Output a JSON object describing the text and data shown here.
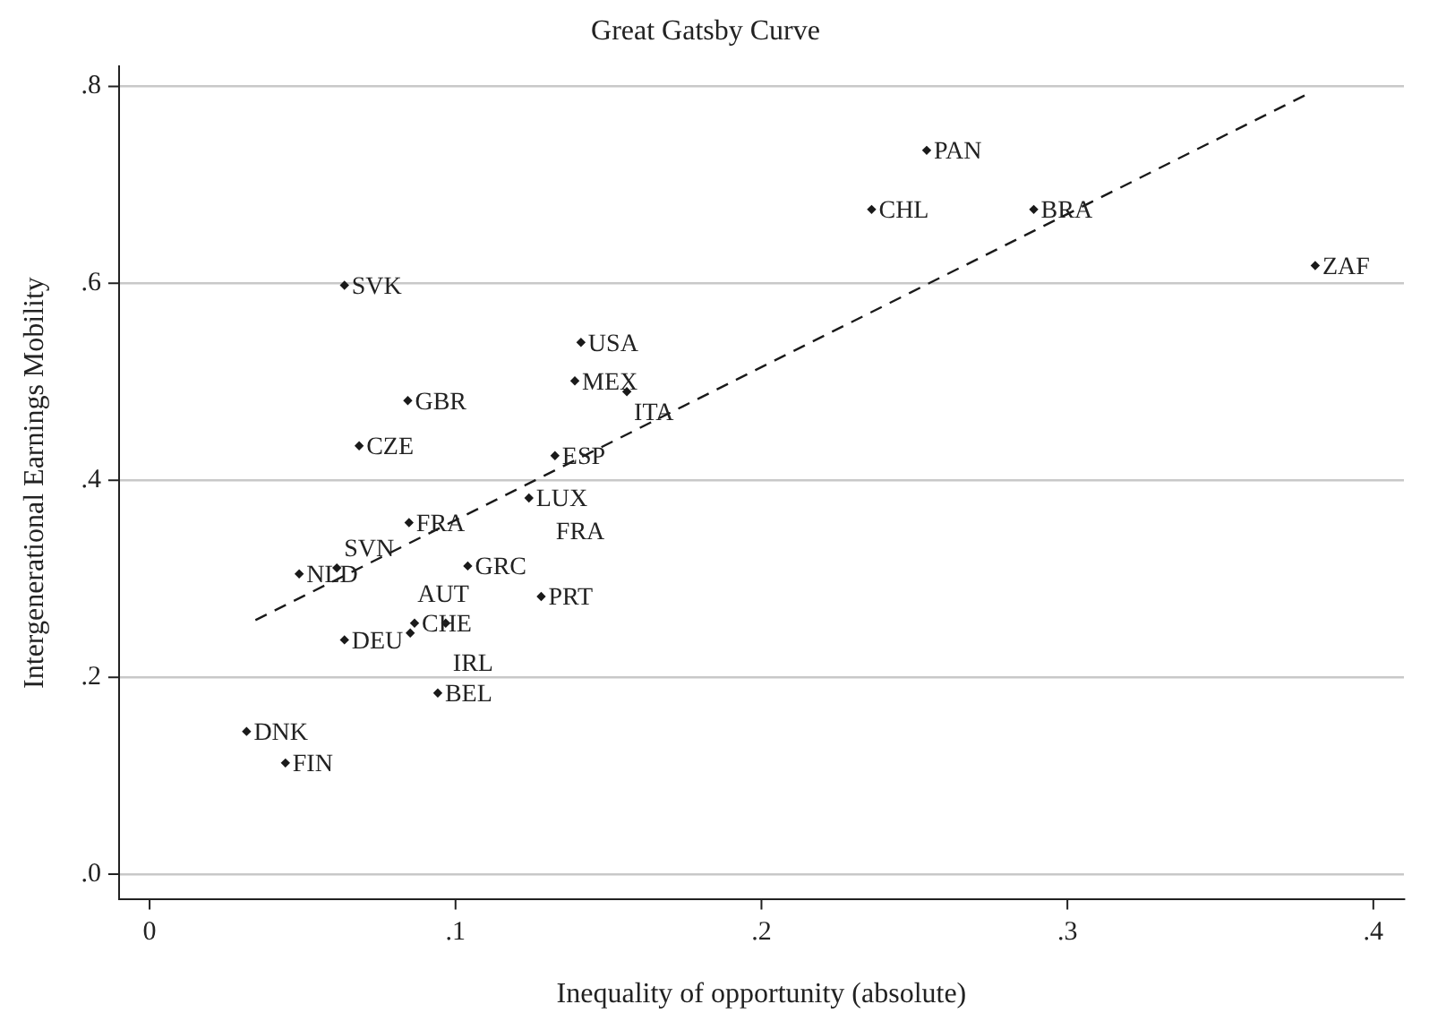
{
  "chart_data": {
    "type": "scatter",
    "title": "Great Gatsby Curve",
    "xlabel": "Inequality of opportunity (absolute)",
    "ylabel": "Intergenerational Earnings Mobility",
    "xlim": [
      -0.01,
      0.41
    ],
    "ylim": [
      -0.025,
      0.82
    ],
    "xticks": [
      {
        "value": 0,
        "label": "0"
      },
      {
        "value": 0.1,
        "label": ".1"
      },
      {
        "value": 0.2,
        "label": ".2"
      },
      {
        "value": 0.3,
        "label": ".3"
      },
      {
        "value": 0.4,
        "label": ".4"
      }
    ],
    "yticks": [
      {
        "value": 0,
        "label": ".0"
      },
      {
        "value": 0.2,
        "label": ".2"
      },
      {
        "value": 0.4,
        "label": ".4"
      },
      {
        "value": 0.6,
        "label": ".6"
      },
      {
        "value": 0.8,
        "label": ".8"
      }
    ],
    "grid": "y",
    "legend": false,
    "marker": "diamond",
    "series": [
      {
        "type": "scatter",
        "color": "#1a1a1a",
        "x": [
          0.254,
          0.236,
          0.289,
          0.381,
          0.0637,
          0.141,
          0.139,
          0.156,
          0.0844,
          0.0685,
          0.1325,
          0.124,
          0.0848,
          0.0489,
          0.0612,
          0.104,
          0.128,
          0.0866,
          0.0968,
          0.0852,
          0.0637,
          0.0942,
          0.0317,
          0.0444
        ],
        "values": [
          0.735,
          0.675,
          0.675,
          0.618,
          0.598,
          0.54,
          0.501,
          0.49,
          0.481,
          0.435,
          0.425,
          0.382,
          0.357,
          0.305,
          0.311,
          0.313,
          0.282,
          0.255,
          0.255,
          0.245,
          0.238,
          0.184,
          0.145,
          0.113
        ]
      },
      {
        "type": "line",
        "color": "#1a1a1a",
        "marker": "none",
        "line_style": "dashed",
        "x": [
          0.0346,
          0.379
        ],
        "values": [
          0.258,
          0.793
        ]
      }
    ],
    "annotations": [
      {
        "text": "PAN",
        "x": 0.254,
        "y": 0.735
      },
      {
        "text": "CHL",
        "x": 0.236,
        "y": 0.675
      },
      {
        "text": "BRA",
        "x": 0.289,
        "y": 0.675
      },
      {
        "text": "ZAF",
        "x": 0.381,
        "y": 0.618
      },
      {
        "text": "SVK",
        "x": 0.0637,
        "y": 0.598
      },
      {
        "text": "USA",
        "x": 0.141,
        "y": 0.54
      },
      {
        "text": "MEX",
        "x": 0.139,
        "y": 0.501
      },
      {
        "text": "ITA",
        "x": 0.156,
        "y": 0.49
      },
      {
        "text": "GBR",
        "x": 0.0844,
        "y": 0.481
      },
      {
        "text": "CZE",
        "x": 0.0685,
        "y": 0.435
      },
      {
        "text": "ESP",
        "x": 0.1325,
        "y": 0.425
      },
      {
        "text": "LUX",
        "x": 0.124,
        "y": 0.382
      },
      {
        "text": "FRA",
        "x": 0.0848,
        "y": 0.357
      },
      "FRA",
      {
        "text": "NLD",
        "x": 0.0489,
        "y": 0.305
      },
      {
        "text": "SVN",
        "x": 0.0612,
        "y": 0.311
      },
      {
        "text": "GRC",
        "x": 0.104,
        "y": 0.313
      },
      {
        "text": "PRT",
        "x": 0.128,
        "y": 0.282
      },
      {
        "text": "CHE",
        "x": 0.0866,
        "y": 0.255
      },
      {
        "text": "IRL",
        "x": 0.0968,
        "y": 0.255
      },
      {
        "text": "AUT",
        "x": 0.0852,
        "y": 0.245
      },
      {
        "text": "DEU",
        "x": 0.0637,
        "y": 0.238
      },
      {
        "text": "BEL",
        "x": 0.0942,
        "y": 0.184
      },
      {
        "text": "DNK",
        "x": 0.0317,
        "y": 0.145
      },
      {
        "text": "FIN",
        "x": 0.0444,
        "y": 0.113
      }
    ]
  }
}
